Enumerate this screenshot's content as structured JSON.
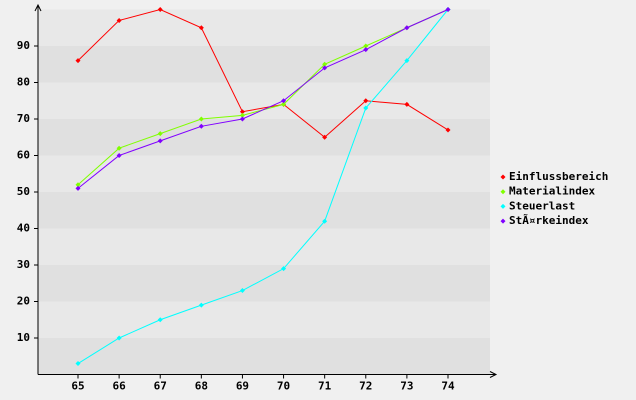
{
  "chart_data": {
    "type": "line",
    "categories": [
      "65",
      "66",
      "67",
      "68",
      "69",
      "70",
      "71",
      "72",
      "73",
      "74"
    ],
    "series": [
      {
        "name": "Einflussbereich",
        "color": "#ff0000",
        "values": [
          86,
          97,
          100,
          95,
          72,
          74,
          65,
          75,
          74,
          67
        ]
      },
      {
        "name": "Materialindex",
        "color": "#80ff00",
        "values": [
          52,
          62,
          66,
          70,
          71,
          74,
          85,
          90,
          95,
          100
        ]
      },
      {
        "name": "Steuerlast",
        "color": "#00ffff",
        "values": [
          3,
          10,
          15,
          19,
          23,
          29,
          42,
          73,
          86,
          100
        ]
      },
      {
        "name": "StÃ¤rkeindex",
        "color": "#8000ff",
        "values": [
          51,
          60,
          64,
          68,
          70,
          75,
          84,
          89,
          95,
          100
        ]
      }
    ],
    "ylim": [
      0,
      100
    ],
    "yticks": [
      10,
      20,
      30,
      40,
      50,
      60,
      70,
      80,
      90
    ],
    "grid": true,
    "legend": "right"
  }
}
